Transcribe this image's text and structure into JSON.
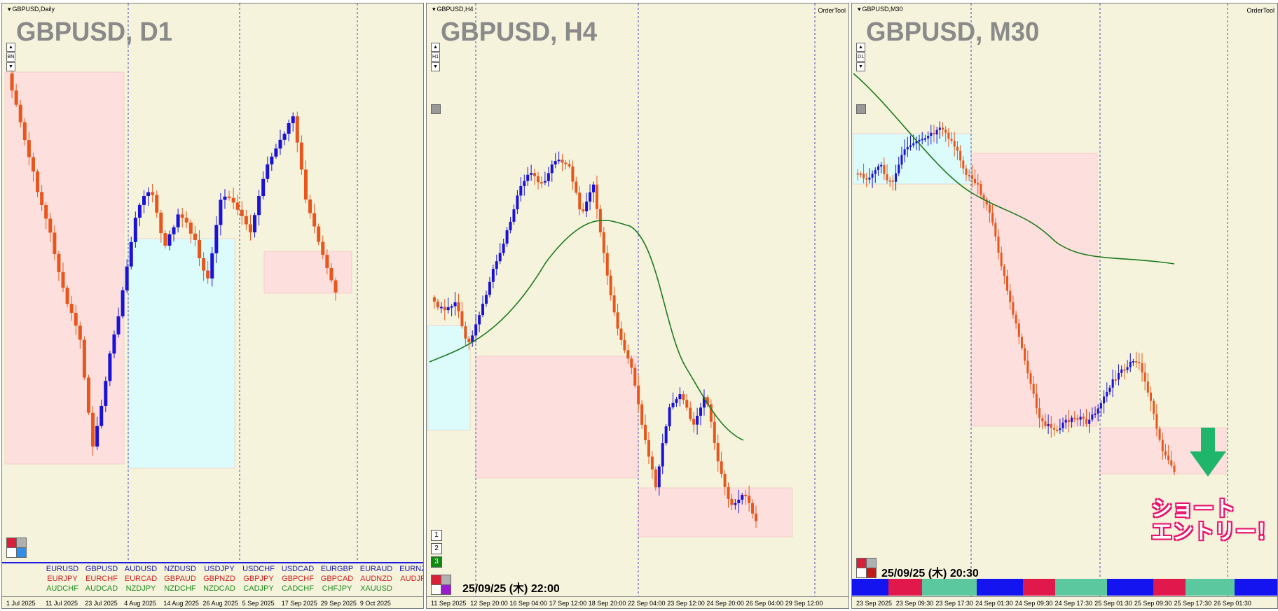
{
  "panels": [
    {
      "id": "daily",
      "title": "GBPUSD,Daily",
      "big": "GBPUSD, D1",
      "order_tool": "",
      "nav": [
        "▲",
        "BN",
        "▼"
      ],
      "ticks": [
        "1 Jul 2025",
        "11 Jul 2025",
        "23 Jul 2025",
        "4 Aug 2025",
        "14 Aug 2025",
        "26 Aug 2025",
        "5 Sep 2025",
        "17 Sep 2025",
        "29 Sep 2025",
        "9 Oct 2025"
      ],
      "ma": false
    },
    {
      "id": "h4",
      "title": "GBPUSD,H4",
      "big": "GBPUSD, H4",
      "order_tool": "OrderTool",
      "nav": [
        "▲",
        "H1",
        "▼"
      ],
      "ticks": [
        "11 Sep 2025",
        "12 Sep 20:00",
        "16 Sep 04:00",
        "17 Sep 12:00",
        "18 Sep 20:00",
        "22 Sep 04:00",
        "23 Sep 12:00",
        "24 Sep 20:00",
        "26 Sep 04:00",
        "29 Sep 12:00"
      ],
      "ma": true,
      "timestamp": "25/09/25 (木) 22:00",
      "tf_buttons": [
        "1",
        "2",
        "3"
      ]
    },
    {
      "id": "m30",
      "title": "GBPUSD,M30",
      "big": "GBPUSD, M30",
      "order_tool": "OrderTool",
      "nav": [
        "▲",
        "D1",
        "▼"
      ],
      "ticks": [
        "23 Sep 2025",
        "23 Sep 09:30",
        "23 Sep 17:30",
        "24 Sep 01:30",
        "24 Sep 09:30",
        "24 Sep 17:30",
        "25 Sep 01:30",
        "25 Sep 09:30",
        "25 Sep 17:30",
        "26 Sep 01:30"
      ],
      "ma": true,
      "timestamp": "25/09/25 (木) 20:30",
      "annotation": [
        "ショート",
        "エントリー！"
      ]
    }
  ],
  "pairs": [
    [
      {
        "t": "EURUSD",
        "c": "#1a1aa8"
      },
      {
        "t": "GBPUSD",
        "c": "#1a1aa8"
      },
      {
        "t": "AUDUSD",
        "c": "#1a1aa8"
      },
      {
        "t": "NZDUSD",
        "c": "#1a1aa8"
      },
      {
        "t": "USDJPY",
        "c": "#1a1aa8"
      },
      {
        "t": "USDCHF",
        "c": "#1a1aa8"
      },
      {
        "t": "USDCAD",
        "c": "#1a1aa8"
      },
      {
        "t": "EURGBP",
        "c": "#1a1aa8"
      },
      {
        "t": "EURAUD",
        "c": "#1a1aa8"
      },
      {
        "t": "EURNZD",
        "c": "#1a1aa8"
      }
    ],
    [
      {
        "t": "EURJPY",
        "c": "#d02020"
      },
      {
        "t": "EURCHF",
        "c": "#d02020"
      },
      {
        "t": "EURCAD",
        "c": "#d02020"
      },
      {
        "t": "GBPAUD",
        "c": "#d02020"
      },
      {
        "t": "GBPNZD",
        "c": "#d02020"
      },
      {
        "t": "GBPJPY",
        "c": "#d02020"
      },
      {
        "t": "GBPCHF",
        "c": "#d02020"
      },
      {
        "t": "GBPCAD",
        "c": "#d02020"
      },
      {
        "t": "AUDNZD",
        "c": "#d02020"
      },
      {
        "t": "AUDJPY",
        "c": "#d02020"
      }
    ],
    [
      {
        "t": "AUDCHF",
        "c": "#1f8a1f"
      },
      {
        "t": "AUDCAD",
        "c": "#1f8a1f"
      },
      {
        "t": "NZDJPY",
        "c": "#1f8a1f"
      },
      {
        "t": "NZDCHF",
        "c": "#1f8a1f"
      },
      {
        "t": "NZDCAD",
        "c": "#1f8a1f"
      },
      {
        "t": "CADJPY",
        "c": "#1f8a1f"
      },
      {
        "t": "CADCHF",
        "c": "#1f8a1f"
      },
      {
        "t": "CHFJPY",
        "c": "#1f8a1f"
      },
      {
        "t": "XAUUSD",
        "c": "#1f8a1f"
      }
    ]
  ],
  "colors": {
    "bull": "#1a12d6",
    "bear": "#e8561c",
    "ma": "#1e7a1e",
    "zone_red": "#fde0de",
    "zone_blue": "#dcfbfb",
    "arrow": "#1fb56a",
    "sep": "#2a2aa0"
  },
  "icons": {
    "entry_arrow": "down-arrow-icon",
    "tf_buttons": "timeframe-buttons"
  }
}
